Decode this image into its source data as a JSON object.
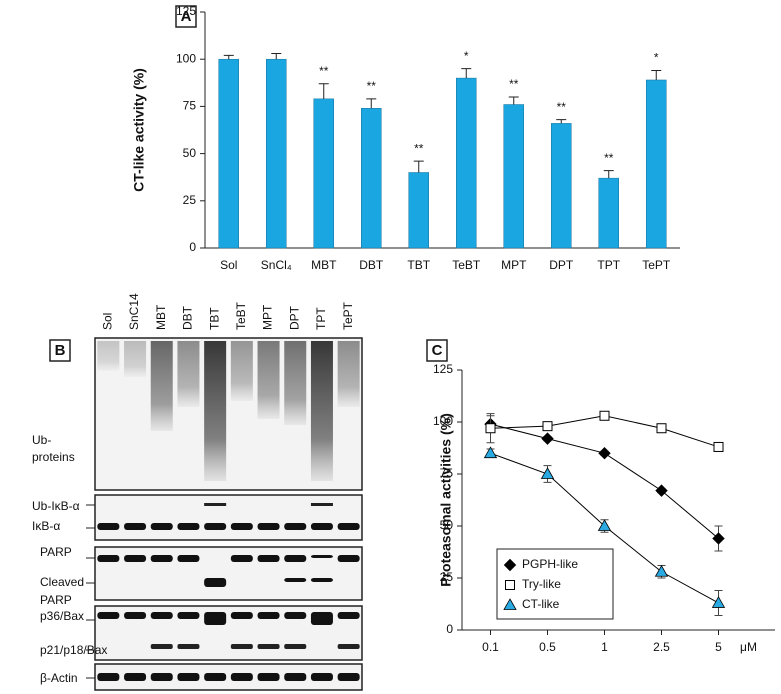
{
  "chart_data": [
    {
      "type": "bar",
      "panel_label": "A",
      "y_label": "CT-like activity (%)",
      "categories": [
        "Sol",
        "SnCl₄",
        "MBT",
        "DBT",
        "TBT",
        "TeBT",
        "MPT",
        "DPT",
        "TPT",
        "TePT"
      ],
      "values": [
        100,
        100,
        79,
        74,
        40,
        90,
        76,
        66,
        37,
        89
      ],
      "errors": [
        2,
        3,
        8,
        5,
        6,
        5,
        4,
        2,
        4,
        5
      ],
      "annotations": [
        null,
        null,
        "**",
        "**",
        "**",
        "*",
        "**",
        "**",
        "**",
        "*"
      ],
      "color": "#1aa7e1",
      "ylim": [
        0,
        125
      ],
      "yticks": [
        0,
        25,
        50,
        75,
        100,
        125
      ]
    },
    {
      "type": "line",
      "panel_label": "C",
      "y_label": "Proteasomal activities (%)",
      "x_unit": "μM",
      "categories": [
        "0.1",
        "0.5",
        "1",
        "2.5",
        "5"
      ],
      "series": [
        {
          "name": "PGPH-like",
          "color": "#000000",
          "marker": "diamond",
          "values": [
            99,
            92,
            85,
            67,
            44
          ],
          "errors": [
            4,
            1,
            1,
            1,
            6
          ]
        },
        {
          "name": "Try-like",
          "color": "#ffffff",
          "marker": "square",
          "values": [
            97,
            98,
            103,
            97,
            88
          ],
          "errors": [
            7,
            2,
            1,
            1,
            1
          ]
        },
        {
          "name": "CT-like",
          "color": "#29aae2",
          "marker": "triangle",
          "values": [
            85,
            75,
            50,
            28,
            13
          ],
          "errors": [
            2,
            4,
            3,
            3,
            6
          ]
        }
      ],
      "ylim": [
        0,
        125
      ],
      "yticks": [
        0,
        25,
        50,
        75,
        100,
        125
      ],
      "legend": "lower left"
    }
  ],
  "panel_b": {
    "panel_label": "B",
    "lanes": [
      "Sol",
      "SnC14",
      "MBT",
      "DBT",
      "TBT",
      "TeBT",
      "MPT",
      "DPT",
      "TPT",
      "TePT"
    ],
    "row_labels": [
      "Ub-",
      "proteins",
      "Ub-IκB-α",
      "IκB-α",
      "PARP",
      "Cleaved",
      "PARP",
      "p36/Bax",
      "p21/p18/Bax",
      "β-Actin"
    ]
  }
}
